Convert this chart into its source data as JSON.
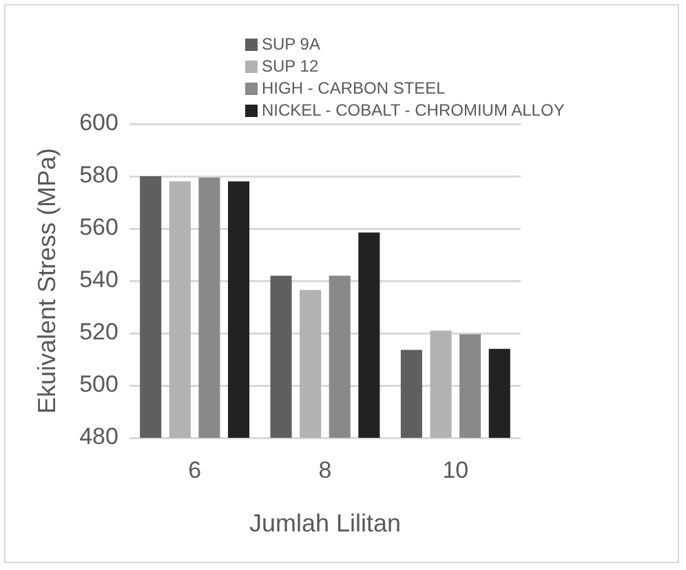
{
  "chart_data": {
    "type": "bar",
    "xlabel": "Jumlah Lilitan",
    "ylabel": "Ekuivalent Stress (MPa)",
    "categories": [
      "6",
      "8",
      "10"
    ],
    "series": [
      {
        "name": "SUP 9A",
        "color": "#5f5f5f",
        "values": [
          580,
          542,
          513.6
        ]
      },
      {
        "name": "SUP 12",
        "color": "#b2b2b2",
        "values": [
          578,
          536.5,
          521
        ]
      },
      {
        "name": "HIGH - CARBON STEEL",
        "color": "#898989",
        "values": [
          579.5,
          542,
          519.6
        ]
      },
      {
        "name": "NICKEL - COBALT - CHROMIUM ALLOY",
        "color": "#222222",
        "values": [
          578,
          558.5,
          514
        ]
      }
    ],
    "ylim": [
      480,
      600
    ],
    "yticks": [
      480,
      500,
      520,
      540,
      560,
      580,
      600
    ],
    "grid": "y",
    "legend": "top"
  }
}
